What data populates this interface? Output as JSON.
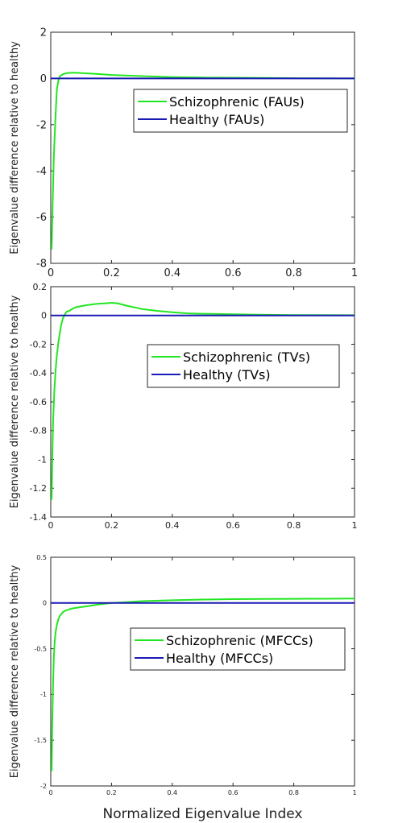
{
  "colors": {
    "schizophrenic": "#22e622",
    "healthy": "#1a1ab4",
    "axis": "#262626",
    "background": "#ffffff"
  },
  "chart_data": [
    {
      "type": "line",
      "ylabel": "Eigenvalue difference relative to healthy",
      "xlabel": "",
      "xlim": [
        0,
        1
      ],
      "ylim": [
        -8,
        2
      ],
      "xticks": [
        0,
        0.2,
        0.4,
        0.6,
        0.8,
        1
      ],
      "xtick_labels": [
        "0",
        "0.2",
        "0.4",
        "0.6",
        "0.8",
        "1"
      ],
      "yticks": [
        -8,
        -6,
        -4,
        -2,
        0,
        2
      ],
      "ytick_labels": [
        "-8",
        "-6",
        "-4",
        "-2",
        "0",
        "2"
      ],
      "grid": false,
      "legend_position": "right",
      "series": [
        {
          "name": "Schizophrenic (FAUs)",
          "color": "#22e622",
          "x": [
            0.003,
            0.006,
            0.01,
            0.015,
            0.02,
            0.025,
            0.03,
            0.04,
            0.05,
            0.06,
            0.08,
            0.1,
            0.15,
            0.2,
            0.3,
            0.4,
            0.5,
            0.6,
            0.7,
            0.8,
            0.9,
            1.0
          ],
          "y": [
            -7.4,
            -5.5,
            -3.4,
            -1.8,
            -0.5,
            -0.1,
            0.1,
            0.18,
            0.22,
            0.24,
            0.25,
            0.23,
            0.2,
            0.15,
            0.1,
            0.06,
            0.04,
            0.03,
            0.02,
            0.01,
            0.005,
            0.0
          ]
        },
        {
          "name": "Healthy (FAUs)",
          "color": "#1a1ab4",
          "x": [
            0,
            1
          ],
          "y": [
            0,
            0
          ]
        }
      ]
    },
    {
      "type": "line",
      "ylabel": "Eigenvalue difference relative to healthy",
      "xlabel": "",
      "xlim": [
        0,
        1
      ],
      "ylim": [
        -1.4,
        0.2
      ],
      "xticks": [
        0,
        0.2,
        0.4,
        0.6,
        0.8,
        1
      ],
      "xtick_labels": [
        "0",
        "0.2",
        "0.4",
        "0.6",
        "0.8",
        "1"
      ],
      "yticks": [
        -1.4,
        -1.2,
        -1,
        -0.8,
        -0.6,
        -0.4,
        -0.2,
        0,
        0.2
      ],
      "ytick_labels": [
        "-1.4",
        "-1.2",
        "-1",
        "-0.8",
        "-0.6",
        "-0.4",
        "-0.2",
        "0",
        "0.2"
      ],
      "grid": false,
      "legend_position": "right",
      "series": [
        {
          "name": "Schizophrenic (TVs)",
          "color": "#22e622",
          "x": [
            0.003,
            0.005,
            0.008,
            0.012,
            0.016,
            0.02,
            0.025,
            0.03,
            0.035,
            0.04,
            0.05,
            0.055,
            0.06,
            0.07,
            0.08,
            0.1,
            0.12,
            0.15,
            0.18,
            0.2,
            0.22,
            0.25,
            0.3,
            0.35,
            0.4,
            0.45,
            0.5,
            0.6,
            0.7,
            0.8,
            1.0
          ],
          "y": [
            -1.28,
            -1.0,
            -0.72,
            -0.52,
            -0.38,
            -0.28,
            -0.19,
            -0.12,
            -0.06,
            -0.02,
            0.02,
            0.03,
            0.03,
            0.045,
            0.055,
            0.065,
            0.072,
            0.08,
            0.085,
            0.088,
            0.085,
            0.068,
            0.045,
            0.032,
            0.022,
            0.015,
            0.012,
            0.008,
            0.005,
            0.003,
            0.002
          ]
        },
        {
          "name": "Healthy (TVs)",
          "color": "#1a1ab4",
          "x": [
            0,
            1
          ],
          "y": [
            0,
            0
          ]
        }
      ]
    },
    {
      "type": "line",
      "ylabel": "Eigenvalue difference relative to healthy",
      "xlabel": "Normalized Eigenvalue Index",
      "xlim": [
        0,
        1
      ],
      "ylim": [
        -2,
        0.5
      ],
      "xticks": [
        0,
        0.2,
        0.4,
        0.6,
        0.8,
        1
      ],
      "xtick_labels": [
        "0",
        "0.2",
        "0.4",
        "0.6",
        "0.8",
        "1"
      ],
      "yticks": [
        -2,
        -1.5,
        -1,
        -0.5,
        0,
        0.5
      ],
      "ytick_labels": [
        "-2",
        "-1.5",
        "-1",
        "-0.5",
        "0",
        "0.5"
      ],
      "grid": false,
      "legend_position": "right",
      "series": [
        {
          "name": "Schizophrenic (MFCCs)",
          "color": "#22e622",
          "x": [
            0.003,
            0.005,
            0.008,
            0.01,
            0.013,
            0.016,
            0.02,
            0.025,
            0.03,
            0.04,
            0.05,
            0.07,
            0.1,
            0.13,
            0.16,
            0.2,
            0.25,
            0.3,
            0.4,
            0.5,
            0.6,
            0.7,
            0.8,
            0.9,
            1.0
          ],
          "y": [
            -1.84,
            -1.3,
            -0.85,
            -0.6,
            -0.42,
            -0.32,
            -0.24,
            -0.18,
            -0.14,
            -0.1,
            -0.08,
            -0.06,
            -0.045,
            -0.03,
            -0.015,
            0.0,
            0.01,
            0.02,
            0.03,
            0.038,
            0.042,
            0.045,
            0.046,
            0.047,
            0.048
          ]
        },
        {
          "name": "Healthy (MFCCs)",
          "color": "#1a1ab4",
          "x": [
            0,
            1
          ],
          "y": [
            0,
            0
          ]
        }
      ]
    }
  ]
}
